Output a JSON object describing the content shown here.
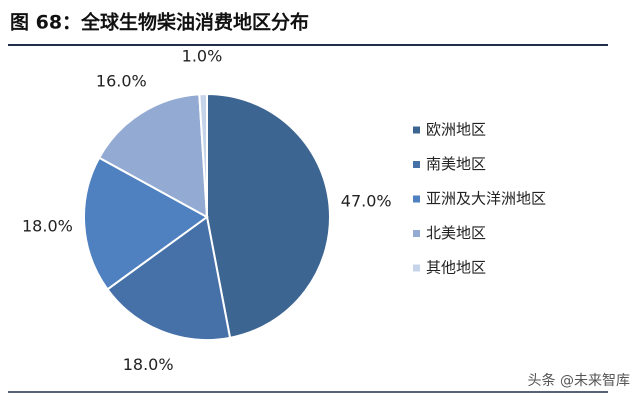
{
  "chart_data": {
    "type": "pie",
    "title": "图 68：全球生物柴油消费地区分布",
    "categories": [
      "欧洲地区",
      "南美地区",
      "亚洲及大洋洲地区",
      "北美地区",
      "其他地区"
    ],
    "values": [
      47,
      18,
      18,
      16,
      1
    ],
    "value_labels": [
      "47.0%",
      "18.0%",
      "18.0%",
      "16.0%",
      "1.0%"
    ],
    "colors": [
      "#3d6591",
      "#4670a8",
      "#4f80bf",
      "#93abd2",
      "#c6d4ea"
    ],
    "legend": "right",
    "watermark": "头条 @未来智库"
  }
}
